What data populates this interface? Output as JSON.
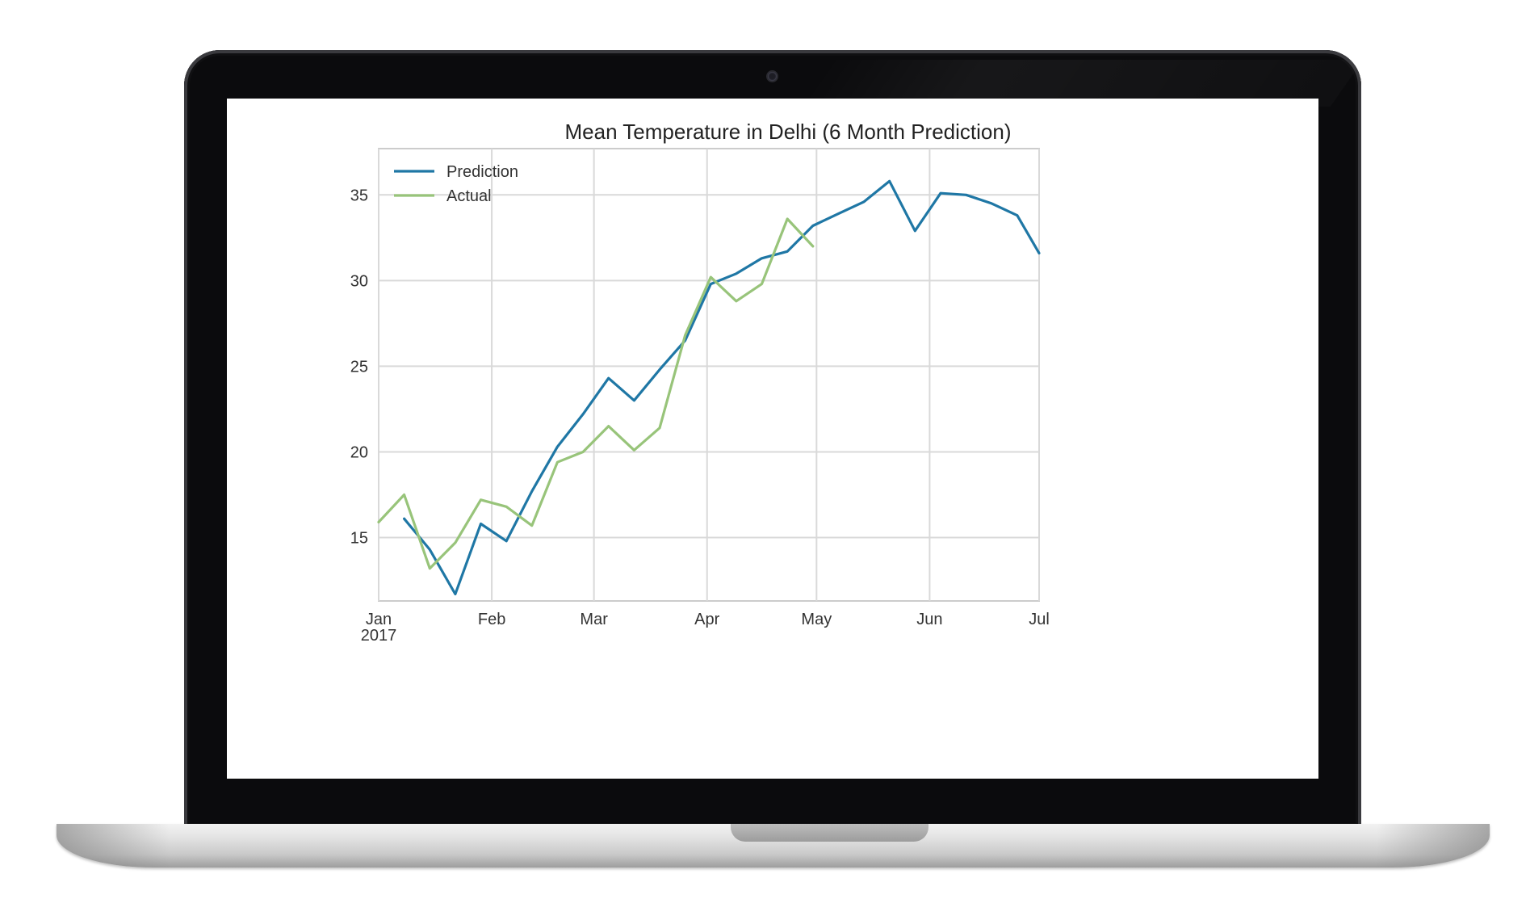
{
  "chart_data": {
    "type": "line",
    "title": "Mean Temperature in Delhi (6 Month Prediction)",
    "xlabel": "",
    "ylabel": "",
    "x_ticks": [
      {
        "date": "2017-01-01",
        "label": "Jan",
        "sublabel": "2017"
      },
      {
        "date": "2017-02-01",
        "label": "Feb",
        "sublabel": ""
      },
      {
        "date": "2017-03-01",
        "label": "Mar",
        "sublabel": ""
      },
      {
        "date": "2017-04-01",
        "label": "Apr",
        "sublabel": ""
      },
      {
        "date": "2017-05-01",
        "label": "May",
        "sublabel": ""
      },
      {
        "date": "2017-06-01",
        "label": "Jun",
        "sublabel": ""
      },
      {
        "date": "2017-07-01",
        "label": "Jul",
        "sublabel": ""
      }
    ],
    "xlim": [
      "2017-01-01",
      "2017-07-01"
    ],
    "y_ticks": [
      15,
      20,
      25,
      30,
      35
    ],
    "ylim": [
      11.3,
      37.7
    ],
    "grid": true,
    "legend_position": "top-left",
    "series": [
      {
        "name": "Prediction",
        "color": "#1f77a5",
        "points": [
          [
            "2017-01-08",
            16.1
          ],
          [
            "2017-01-15",
            14.3
          ],
          [
            "2017-01-22",
            11.7
          ],
          [
            "2017-01-29",
            15.8
          ],
          [
            "2017-02-05",
            14.8
          ],
          [
            "2017-02-12",
            17.7
          ],
          [
            "2017-02-19",
            20.3
          ],
          [
            "2017-02-26",
            22.2
          ],
          [
            "2017-03-05",
            24.3
          ],
          [
            "2017-03-12",
            23.0
          ],
          [
            "2017-03-19",
            24.8
          ],
          [
            "2017-03-26",
            26.5
          ],
          [
            "2017-04-02",
            29.8
          ],
          [
            "2017-04-09",
            30.4
          ],
          [
            "2017-04-16",
            31.3
          ],
          [
            "2017-04-23",
            31.7
          ],
          [
            "2017-04-30",
            33.2
          ],
          [
            "2017-05-07",
            33.9
          ],
          [
            "2017-05-14",
            34.6
          ],
          [
            "2017-05-21",
            35.8
          ],
          [
            "2017-05-28",
            32.9
          ],
          [
            "2017-06-04",
            35.1
          ],
          [
            "2017-06-11",
            35.0
          ],
          [
            "2017-06-18",
            34.5
          ],
          [
            "2017-06-25",
            33.8
          ],
          [
            "2017-07-01",
            31.6
          ]
        ]
      },
      {
        "name": "Actual",
        "color": "#98c47a",
        "points": [
          [
            "2017-01-01",
            15.9
          ],
          [
            "2017-01-08",
            17.5
          ],
          [
            "2017-01-15",
            13.2
          ],
          [
            "2017-01-22",
            14.7
          ],
          [
            "2017-01-29",
            17.2
          ],
          [
            "2017-02-05",
            16.8
          ],
          [
            "2017-02-12",
            15.7
          ],
          [
            "2017-02-19",
            19.4
          ],
          [
            "2017-02-26",
            20.0
          ],
          [
            "2017-03-05",
            21.5
          ],
          [
            "2017-03-12",
            20.1
          ],
          [
            "2017-03-19",
            21.4
          ],
          [
            "2017-03-26",
            26.8
          ],
          [
            "2017-04-02",
            30.2
          ],
          [
            "2017-04-09",
            28.8
          ],
          [
            "2017-04-16",
            29.8
          ],
          [
            "2017-04-23",
            33.6
          ],
          [
            "2017-04-30",
            32.0
          ]
        ]
      }
    ]
  }
}
